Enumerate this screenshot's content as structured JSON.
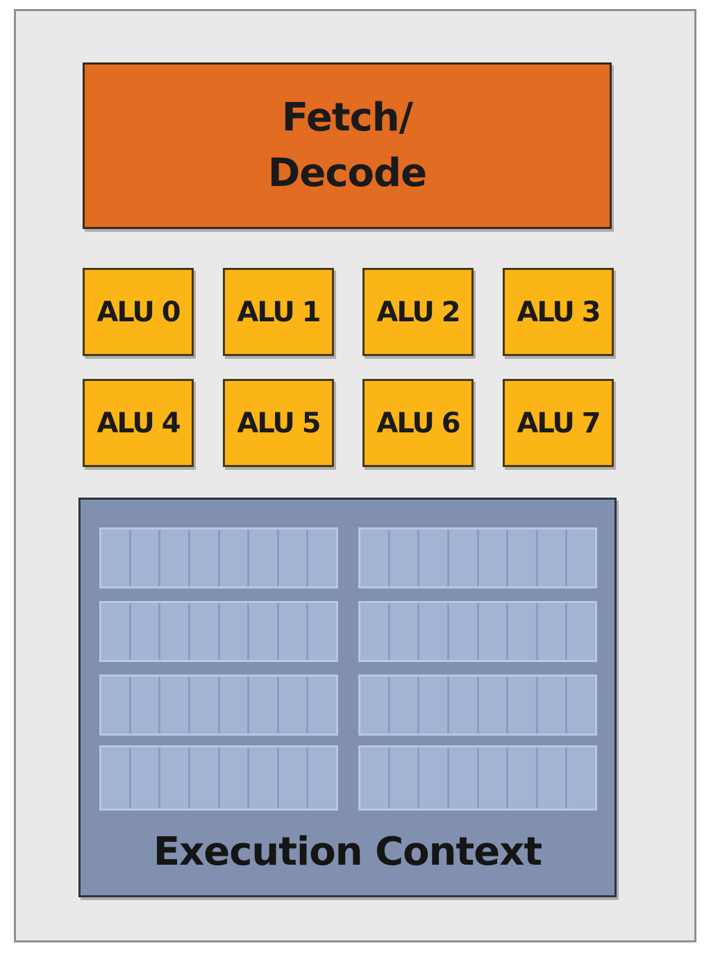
{
  "fetch_decode": {
    "label": "Fetch/\nDecode"
  },
  "alus": [
    {
      "label": "ALU 0"
    },
    {
      "label": "ALU 1"
    },
    {
      "label": "ALU 2"
    },
    {
      "label": "ALU 3"
    },
    {
      "label": "ALU 4"
    },
    {
      "label": "ALU 5"
    },
    {
      "label": "ALU 6"
    },
    {
      "label": "ALU 7"
    }
  ],
  "execution_context": {
    "label": "Execution Context"
  },
  "colors": {
    "core_bg": "#e9e9e9",
    "fetch_decode": "#e26c22",
    "alu": "#fbb517",
    "context": "#8090ae",
    "register": "#a3b3d4"
  }
}
